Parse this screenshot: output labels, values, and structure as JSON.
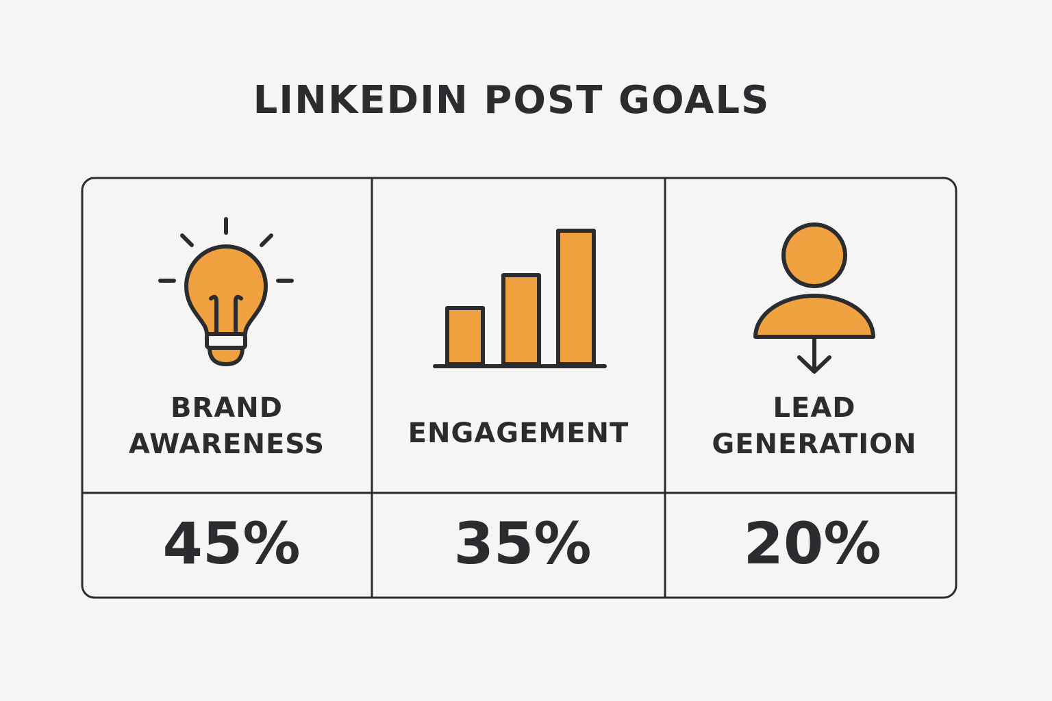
{
  "title": "LINKEDIN POST GOALS",
  "cards": [
    {
      "label": [
        "BRAND",
        "AWARENESS"
      ],
      "value": "45%"
    },
    {
      "label": [
        "ENGAGEMENT"
      ],
      "value": "35%"
    },
    {
      "label": [
        "LEAD",
        "GENERATION"
      ],
      "value": "20%"
    }
  ]
}
